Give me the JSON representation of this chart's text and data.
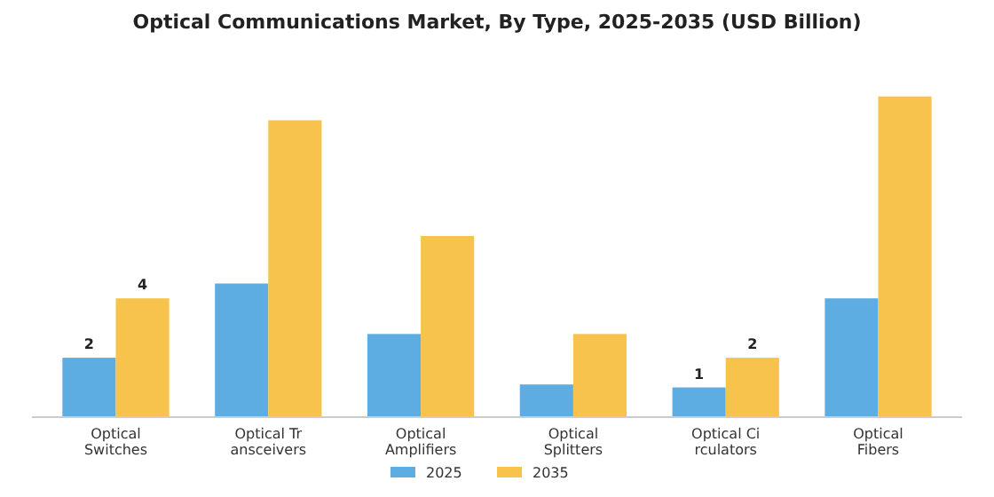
{
  "chart_data": {
    "type": "bar",
    "title": "Optical Communications Market, By Type, 2025-2035 (USD Billion)",
    "ylim": [
      0,
      11
    ],
    "categories": [
      "Optical\nSwitches",
      "Optical Tr\nansceivers",
      "Optical\nAmplifiers",
      "Optical\nSplitters",
      "Optical Ci\nrculators",
      "Optical\nFibers"
    ],
    "series": [
      {
        "name": "2025",
        "color": "#5dade2",
        "values": [
          2,
          4.5,
          2.8,
          1.1,
          1,
          4
        ],
        "value_labels": [
          "2",
          null,
          null,
          null,
          "1",
          null
        ]
      },
      {
        "name": "2035",
        "color": "#f7c34c",
        "values": [
          4,
          10,
          6.1,
          2.8,
          2,
          10.8
        ],
        "value_labels": [
          "4",
          null,
          null,
          null,
          "2",
          null
        ]
      }
    ],
    "legend": "bottom"
  }
}
